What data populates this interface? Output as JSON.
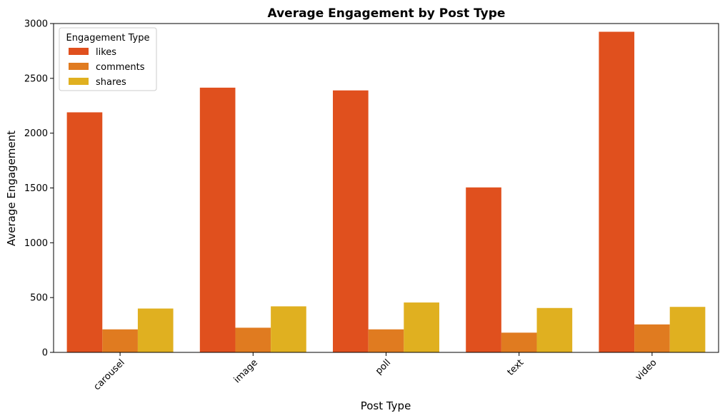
{
  "chart_data": {
    "type": "bar",
    "title": "Average Engagement by Post Type",
    "xlabel": "Post Type",
    "ylabel": "Average Engagement",
    "categories": [
      "carousel",
      "image",
      "poll",
      "text",
      "video"
    ],
    "series": [
      {
        "name": "likes",
        "color": "#e0501e",
        "values": [
          2190,
          2415,
          2390,
          1505,
          2925
        ]
      },
      {
        "name": "comments",
        "color": "#e07b20",
        "values": [
          210,
          225,
          210,
          180,
          255
        ]
      },
      {
        "name": "shares",
        "color": "#e0b020",
        "values": [
          400,
          420,
          455,
          405,
          415
        ]
      }
    ],
    "ylim": [
      0,
      3000
    ],
    "yticks": [
      0,
      500,
      1000,
      1500,
      2000,
      2500,
      3000
    ],
    "grid": false,
    "legend": {
      "title": "Engagement Type",
      "placement": "top-left"
    }
  }
}
